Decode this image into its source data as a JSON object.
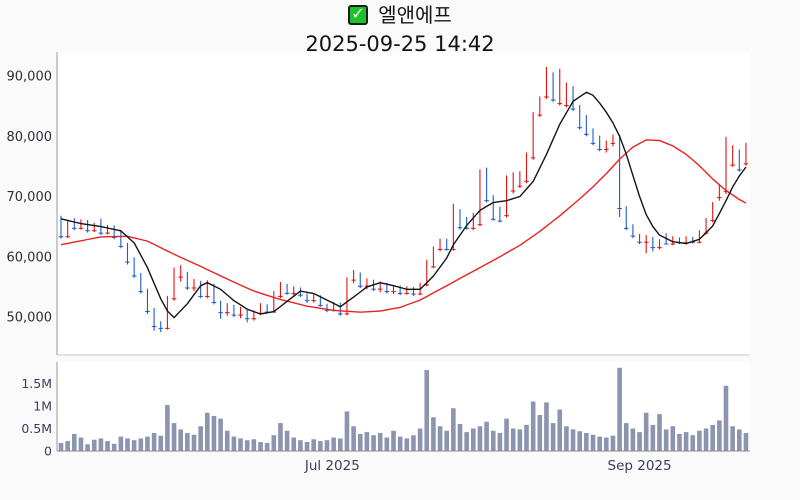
{
  "header": {
    "title": "엘앤에프",
    "checkmark_glyph": "✓",
    "timestamp": "2025-09-25 14:42"
  },
  "colors": {
    "background": "#fafafa",
    "plot_background": "#ffffff",
    "up_candle": "#e11410",
    "down_candle": "#1f5ac9",
    "ma_short_line": "#141414",
    "ma_long_line": "#e82222",
    "volume_bar": "#8c94ae",
    "price_label": "#2e2e36",
    "volume_label": "#3a3e58",
    "date_label": "#3a3e58",
    "axis_line": "#999999",
    "panel_border": "#c9c9c9",
    "checkmark_green": "#1ec32b"
  },
  "chart_data": {
    "type": "candlestick",
    "title": "엘앤에프",
    "subtitle": "2025-09-25 14:42",
    "legend_position": "none",
    "grid": false,
    "price_axis": {
      "side": "left",
      "range": [
        43600,
        94300
      ],
      "ticks": [
        {
          "value": 90000,
          "label": "90,000"
        },
        {
          "value": 80000,
          "label": "80,000"
        },
        {
          "value": 70000,
          "label": "70,000"
        },
        {
          "value": 60000,
          "label": "60,000"
        },
        {
          "value": 50000,
          "label": "50,000"
        }
      ]
    },
    "volume_axis": {
      "side": "left",
      "range": [
        0,
        1980000
      ],
      "ticks": [
        {
          "value": 1500000,
          "label": "1.5M"
        },
        {
          "value": 1000000,
          "label": "1M"
        },
        {
          "value": 500000,
          "label": "0.5M"
        },
        {
          "value": 0,
          "label": "0"
        }
      ]
    },
    "x_axis": {
      "ticks": [
        {
          "index": 40.8,
          "label": "Jul 2025"
        },
        {
          "index": 87,
          "label": "Sep 2025"
        }
      ]
    },
    "candles_ohlc": [
      [
        66300,
        66800,
        63000,
        63400
      ],
      [
        63400,
        66000,
        63100,
        65600
      ],
      [
        65600,
        66400,
        64400,
        64800
      ],
      [
        64800,
        66200,
        64500,
        65900
      ],
      [
        65900,
        66100,
        64000,
        64400
      ],
      [
        64400,
        65600,
        64100,
        65200
      ],
      [
        65200,
        66300,
        63600,
        64000
      ],
      [
        64000,
        65300,
        63700,
        65000
      ],
      [
        65000,
        65200,
        62900,
        63300
      ],
      [
        63300,
        64300,
        61400,
        61800
      ],
      [
        61800,
        62300,
        58700,
        59200
      ],
      [
        59200,
        59900,
        56500,
        56900
      ],
      [
        56900,
        57300,
        53900,
        54300
      ],
      [
        54300,
        54700,
        50500,
        51000
      ],
      [
        51000,
        51500,
        47700,
        48500
      ],
      [
        48500,
        49300,
        47500,
        48200
      ],
      [
        48200,
        53500,
        47900,
        53100
      ],
      [
        53100,
        58200,
        52700,
        56700
      ],
      [
        56700,
        58600,
        55900,
        57300
      ],
      [
        57300,
        57500,
        54500,
        54900
      ],
      [
        54900,
        56300,
        54300,
        55800
      ],
      [
        55800,
        56000,
        53100,
        53500
      ],
      [
        53500,
        56100,
        53100,
        55300
      ],
      [
        55300,
        55500,
        52100,
        52500
      ],
      [
        52500,
        52700,
        49700,
        50800
      ],
      [
        50800,
        52300,
        50200,
        51800
      ],
      [
        51800,
        52000,
        50000,
        50400
      ],
      [
        50400,
        51700,
        49800,
        51200
      ],
      [
        51200,
        51400,
        49100,
        49800
      ],
      [
        49800,
        51100,
        49400,
        50700
      ],
      [
        50700,
        52300,
        50300,
        51900
      ],
      [
        51900,
        52100,
        50600,
        50900
      ],
      [
        50900,
        54300,
        50700,
        53500
      ],
      [
        53500,
        55800,
        53100,
        55300
      ],
      [
        55300,
        55500,
        53700,
        54000
      ],
      [
        54000,
        55100,
        53500,
        54700
      ],
      [
        54700,
        54900,
        53300,
        53700
      ],
      [
        53700,
        53900,
        52300,
        52800
      ],
      [
        52800,
        53900,
        52400,
        53400
      ],
      [
        53400,
        53600,
        51700,
        52000
      ],
      [
        52000,
        52200,
        50800,
        51200
      ],
      [
        51200,
        52500,
        50900,
        52200
      ],
      [
        52200,
        52400,
        50200,
        50600
      ],
      [
        50600,
        56600,
        50300,
        56200
      ],
      [
        56200,
        57800,
        55600,
        57200
      ],
      [
        57200,
        57400,
        54800,
        55200
      ],
      [
        55200,
        56400,
        54600,
        56000
      ],
      [
        56000,
        56200,
        54300,
        54700
      ],
      [
        54700,
        55900,
        54100,
        55500
      ],
      [
        55500,
        55700,
        53900,
        54300
      ],
      [
        54300,
        55300,
        53800,
        55000
      ],
      [
        55000,
        55200,
        53600,
        54000
      ],
      [
        54000,
        55100,
        53700,
        54800
      ],
      [
        54800,
        55000,
        53500,
        53900
      ],
      [
        53900,
        55700,
        53600,
        55400
      ],
      [
        55400,
        59500,
        55100,
        58400
      ],
      [
        58400,
        61700,
        58100,
        61300
      ],
      [
        61300,
        63000,
        60900,
        62800
      ],
      [
        62800,
        63000,
        61000,
        61300
      ],
      [
        61300,
        68800,
        61000,
        67700
      ],
      [
        67700,
        67900,
        64500,
        64900
      ],
      [
        66400,
        66600,
        64500,
        64800
      ],
      [
        64800,
        67300,
        64400,
        66900
      ],
      [
        65400,
        74500,
        65100,
        74100
      ],
      [
        74600,
        74800,
        69000,
        69400
      ],
      [
        70000,
        70200,
        66000,
        66300
      ],
      [
        68000,
        68300,
        65700,
        66000
      ],
      [
        66900,
        73500,
        66500,
        72100
      ],
      [
        71000,
        74000,
        70500,
        73300
      ],
      [
        71800,
        74200,
        71400,
        73500
      ],
      [
        72600,
        77300,
        72200,
        77000
      ],
      [
        76500,
        84000,
        76100,
        83600
      ],
      [
        83600,
        86600,
        83200,
        86200
      ],
      [
        86600,
        91500,
        86200,
        91300
      ],
      [
        89900,
        90600,
        85700,
        86100
      ],
      [
        85500,
        91200,
        85100,
        88200
      ],
      [
        85200,
        88900,
        84800,
        88500
      ],
      [
        88000,
        88300,
        84200,
        84600
      ],
      [
        84900,
        85200,
        81100,
        81500
      ],
      [
        83200,
        83500,
        80000,
        80400
      ],
      [
        81000,
        81300,
        78500,
        78900
      ],
      [
        79800,
        80100,
        77500,
        77900
      ],
      [
        77900,
        79300,
        77300,
        78900
      ],
      [
        78900,
        80300,
        78300,
        79900
      ],
      [
        79900,
        80200,
        66600,
        68100
      ],
      [
        68100,
        68400,
        64400,
        64800
      ],
      [
        64800,
        65400,
        63100,
        63500
      ],
      [
        63500,
        63800,
        62100,
        62500
      ],
      [
        62500,
        63600,
        60600,
        63100
      ],
      [
        63100,
        63300,
        60900,
        61600
      ],
      [
        61600,
        62900,
        61200,
        62600
      ],
      [
        62600,
        63900,
        62100,
        62200
      ],
      [
        62200,
        63400,
        61900,
        63000
      ],
      [
        63000,
        63200,
        62100,
        62400
      ],
      [
        62400,
        63400,
        62000,
        63100
      ],
      [
        63100,
        63300,
        62200,
        62500
      ],
      [
        62500,
        64400,
        62200,
        64000
      ],
      [
        64000,
        66400,
        63700,
        66100
      ],
      [
        66100,
        69100,
        65700,
        68300
      ],
      [
        69900,
        72100,
        69300,
        71300
      ],
      [
        70900,
        79900,
        70400,
        77700
      ],
      [
        75300,
        78500,
        74900,
        78100
      ],
      [
        77500,
        77800,
        74100,
        74500
      ],
      [
        75500,
        78900,
        75100,
        76600
      ]
    ],
    "volumes": [
      180000,
      220000,
      380000,
      300000,
      150000,
      250000,
      280000,
      220000,
      160000,
      320000,
      280000,
      240000,
      280000,
      320000,
      400000,
      340000,
      1020000,
      620000,
      480000,
      400000,
      360000,
      550000,
      850000,
      780000,
      720000,
      450000,
      320000,
      280000,
      240000,
      260000,
      200000,
      180000,
      350000,
      620000,
      450000,
      300000,
      240000,
      200000,
      260000,
      220000,
      240000,
      300000,
      280000,
      880000,
      550000,
      380000,
      420000,
      350000,
      400000,
      300000,
      450000,
      320000,
      280000,
      350000,
      500000,
      1800000,
      750000,
      550000,
      450000,
      950000,
      600000,
      420000,
      500000,
      550000,
      650000,
      450000,
      400000,
      720000,
      500000,
      480000,
      580000,
      1100000,
      800000,
      1080000,
      620000,
      920000,
      550000,
      480000,
      440000,
      400000,
      360000,
      320000,
      300000,
      340000,
      1850000,
      620000,
      500000,
      420000,
      850000,
      580000,
      820000,
      480000,
      550000,
      380000,
      420000,
      350000,
      450000,
      500000,
      580000,
      680000,
      1450000,
      550000,
      480000,
      400000
    ],
    "ma_short_keyframes": [
      [
        0,
        66300
      ],
      [
        3,
        65500
      ],
      [
        6,
        65000
      ],
      [
        9,
        64300
      ],
      [
        11,
        62300
      ],
      [
        13,
        58200
      ],
      [
        15,
        53000
      ],
      [
        16,
        51000
      ],
      [
        17,
        49900
      ],
      [
        19,
        52200
      ],
      [
        21,
        55200
      ],
      [
        22,
        55700
      ],
      [
        24,
        54600
      ],
      [
        26,
        52700
      ],
      [
        28,
        51300
      ],
      [
        30,
        50500
      ],
      [
        32,
        50900
      ],
      [
        34,
        52600
      ],
      [
        36,
        54300
      ],
      [
        38,
        53900
      ],
      [
        40,
        52800
      ],
      [
        42,
        51700
      ],
      [
        44,
        53300
      ],
      [
        46,
        55000
      ],
      [
        48,
        55700
      ],
      [
        50,
        55200
      ],
      [
        52,
        54600
      ],
      [
        54,
        54600
      ],
      [
        56,
        56800
      ],
      [
        58,
        59800
      ],
      [
        59,
        62000
      ],
      [
        61,
        65200
      ],
      [
        63,
        67700
      ],
      [
        65,
        69000
      ],
      [
        67,
        69300
      ],
      [
        69,
        70000
      ],
      [
        71,
        72500
      ],
      [
        73,
        77000
      ],
      [
        75,
        82000
      ],
      [
        77,
        85800
      ],
      [
        79,
        87300
      ],
      [
        80,
        86800
      ],
      [
        81,
        85500
      ],
      [
        82,
        84000
      ],
      [
        83,
        82200
      ],
      [
        84,
        80000
      ],
      [
        85,
        77000
      ],
      [
        86,
        73500
      ],
      [
        87,
        70000
      ],
      [
        88,
        67000
      ],
      [
        89,
        65000
      ],
      [
        90,
        63600
      ],
      [
        92,
        62500
      ],
      [
        94,
        62200
      ],
      [
        96,
        62900
      ],
      [
        98,
        65100
      ],
      [
        100,
        69300
      ],
      [
        101,
        71600
      ],
      [
        102,
        73400
      ],
      [
        103,
        74900
      ]
    ],
    "ma_long_keyframes": [
      [
        0,
        62000
      ],
      [
        6,
        63300
      ],
      [
        10,
        63400
      ],
      [
        13,
        62600
      ],
      [
        17,
        60400
      ],
      [
        21,
        58400
      ],
      [
        25,
        56300
      ],
      [
        29,
        54300
      ],
      [
        33,
        52900
      ],
      [
        37,
        51800
      ],
      [
        41,
        51100
      ],
      [
        45,
        50800
      ],
      [
        48,
        51000
      ],
      [
        51,
        51600
      ],
      [
        54,
        52800
      ],
      [
        57,
        54600
      ],
      [
        60,
        56400
      ],
      [
        63,
        58200
      ],
      [
        66,
        60000
      ],
      [
        69,
        61900
      ],
      [
        72,
        64200
      ],
      [
        75,
        66800
      ],
      [
        78,
        69600
      ],
      [
        80,
        71600
      ],
      [
        82,
        73800
      ],
      [
        84,
        76200
      ],
      [
        86,
        78200
      ],
      [
        88,
        79400
      ],
      [
        90,
        79300
      ],
      [
        92,
        78400
      ],
      [
        94,
        77000
      ],
      [
        96,
        75100
      ],
      [
        98,
        72900
      ],
      [
        100,
        71000
      ],
      [
        102,
        69500
      ],
      [
        103,
        68900
      ]
    ]
  }
}
